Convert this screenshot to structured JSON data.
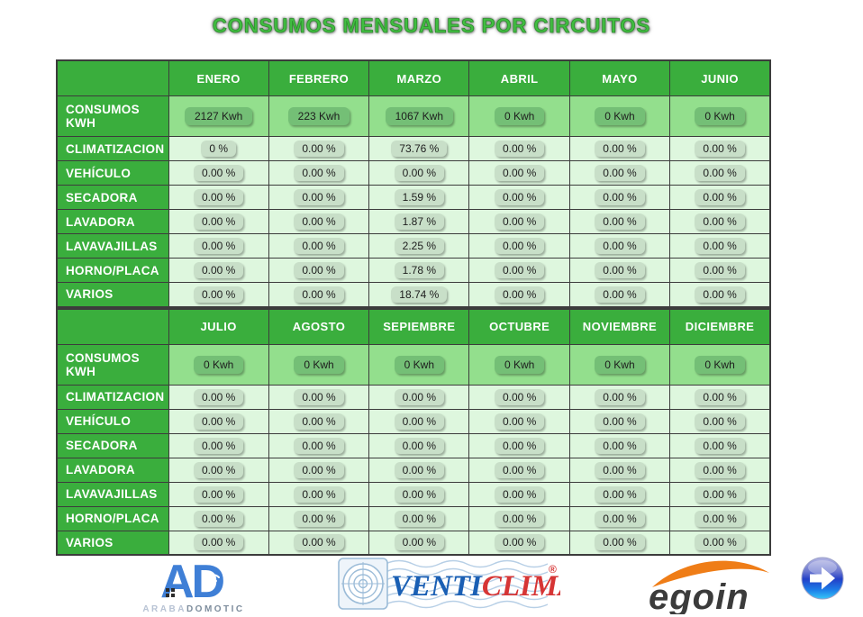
{
  "title": "CONSUMOS MENSUALES POR CIRCUITOS",
  "theme": {
    "header_green": "#3aae3d",
    "kwh_cell_bg": "#93df8d",
    "kwh_badge_bg": "#74bf76",
    "pct_cell_bg": "#def7de",
    "pct_badge_bg": "#c8dfc8",
    "table_border": "#3c3c3c",
    "title_green": "#41bd41"
  },
  "tables": [
    {
      "months": [
        "ENERO",
        "FEBRERO",
        "MARZO",
        "ABRIL",
        "MAYO",
        "JUNIO"
      ],
      "rows": [
        {
          "label": "CONSUMOS KWH",
          "type": "kwh",
          "values": [
            "2127 Kwh",
            "223 Kwh",
            "1067 Kwh",
            "0 Kwh",
            "0 Kwh",
            "0 Kwh"
          ]
        },
        {
          "label": "CLIMATIZACION",
          "type": "pct",
          "values": [
            "0 %",
            "0.00 %",
            "73.76 %",
            "0.00 %",
            "0.00 %",
            "0.00 %"
          ]
        },
        {
          "label": "VEHÍCULO",
          "type": "pct",
          "values": [
            "0.00 %",
            "0.00 %",
            "0.00 %",
            "0.00 %",
            "0.00 %",
            "0.00 %"
          ]
        },
        {
          "label": "SECADORA",
          "type": "pct",
          "values": [
            "0.00 %",
            "0.00 %",
            "1.59 %",
            "0.00 %",
            "0.00 %",
            "0.00 %"
          ]
        },
        {
          "label": "LAVADORA",
          "type": "pct",
          "values": [
            "0.00 %",
            "0.00 %",
            "1.87 %",
            "0.00 %",
            "0.00 %",
            "0.00 %"
          ]
        },
        {
          "label": "LAVAVAJILLAS",
          "type": "pct",
          "values": [
            "0.00 %",
            "0.00 %",
            "2.25 %",
            "0.00 %",
            "0.00 %",
            "0.00 %"
          ]
        },
        {
          "label": "HORNO/PLACA",
          "type": "pct",
          "values": [
            "0.00 %",
            "0.00 %",
            "1.78 %",
            "0.00 %",
            "0.00 %",
            "0.00 %"
          ]
        },
        {
          "label": "VARIOS",
          "type": "pct",
          "values": [
            "0.00 %",
            "0.00 %",
            "18.74 %",
            "0.00 %",
            "0.00 %",
            "0.00 %"
          ]
        }
      ]
    },
    {
      "months": [
        "JULIO",
        "AGOSTO",
        "SEPIEMBRE",
        "OCTUBRE",
        "NOVIEMBRE",
        "DICIEMBRE"
      ],
      "rows": [
        {
          "label": "CONSUMOS KWH",
          "type": "kwh",
          "values": [
            "0 Kwh",
            "0 Kwh",
            "0 Kwh",
            "0 Kwh",
            "0 Kwh",
            "0 Kwh"
          ]
        },
        {
          "label": "CLIMATIZACION",
          "type": "pct",
          "values": [
            "0.00 %",
            "0.00 %",
            "0.00 %",
            "0.00 %",
            "0.00 %",
            "0.00 %"
          ]
        },
        {
          "label": "VEHÍCULO",
          "type": "pct",
          "values": [
            "0.00 %",
            "0.00 %",
            "0.00 %",
            "0.00 %",
            "0.00 %",
            "0.00 %"
          ]
        },
        {
          "label": "SECADORA",
          "type": "pct",
          "values": [
            "0.00 %",
            "0.00 %",
            "0.00 %",
            "0.00 %",
            "0.00 %",
            "0.00 %"
          ]
        },
        {
          "label": "LAVADORA",
          "type": "pct",
          "values": [
            "0.00 %",
            "0.00 %",
            "0.00 %",
            "0.00 %",
            "0.00 %",
            "0.00 %"
          ]
        },
        {
          "label": "LAVAVAJILLAS",
          "type": "pct",
          "values": [
            "0.00 %",
            "0.00 %",
            "0.00 %",
            "0.00 %",
            "0.00 %",
            "0.00 %"
          ]
        },
        {
          "label": "HORNO/PLACA",
          "type": "pct",
          "values": [
            "0.00 %",
            "0.00 %",
            "0.00 %",
            "0.00 %",
            "0.00 %",
            "0.00 %"
          ]
        },
        {
          "label": "VARIOS",
          "type": "pct",
          "values": [
            "0.00 %",
            "0.00 %",
            "0.00 %",
            "0.00 %",
            "0.00 %",
            "0.00 %"
          ]
        }
      ]
    }
  ],
  "footer": {
    "arabadomotic": {
      "letters": "AD",
      "text_light": "ARABA",
      "text_dark": "DOMOTIC"
    },
    "venticlima": {
      "text_blue": "VENTI",
      "text_red": "CLIMA",
      "registered": "®"
    },
    "egoin": {
      "text": "egoin"
    }
  }
}
